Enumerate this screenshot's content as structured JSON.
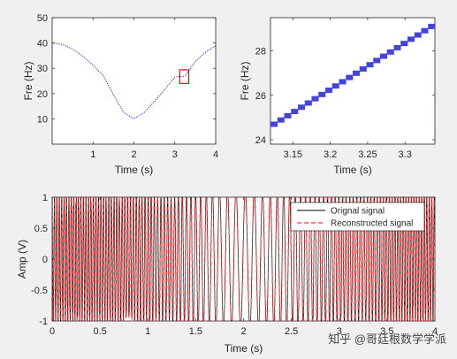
{
  "chart_data": [
    {
      "type": "line",
      "name": "frequency-curve",
      "xlabel": "Time (s)",
      "ylabel": "Fre (Hz)",
      "xlim": [
        0,
        4
      ],
      "ylim": [
        0,
        50
      ],
      "xticks": [
        1,
        2,
        3,
        4
      ],
      "yticks": [
        10,
        20,
        30,
        40,
        50
      ],
      "series": [
        {
          "color": "#0000cc",
          "style": "dotted",
          "x": [
            0,
            0.25,
            0.5,
            0.75,
            1.0,
            1.25,
            1.5,
            1.75,
            2.0,
            2.25,
            2.5,
            2.75,
            3.0,
            3.25,
            3.5,
            3.75,
            4.0
          ],
          "y": [
            40,
            39.4,
            37.6,
            34.8,
            31.2,
            27.1,
            19.5,
            12.5,
            10,
            12.5,
            16.8,
            21.5,
            26.5,
            26.9,
            32.7,
            36.3,
            38.9
          ]
        }
      ],
      "annotations": [
        {
          "type": "rectangle",
          "color": "#ff0000",
          "x": [
            3.12,
            3.34
          ],
          "y": [
            24,
            29.4
          ]
        }
      ]
    },
    {
      "type": "line",
      "name": "frequency-zoom",
      "xlabel": "Time (s)",
      "ylabel": "Fre (Hz)",
      "xlim": [
        3.12,
        3.34
      ],
      "ylim": [
        23.8,
        29.5
      ],
      "xticks": [
        3.15,
        3.2,
        3.25,
        3.3
      ],
      "xtick_labels": [
        "3.15",
        "3.2",
        "3.25",
        "3.3"
      ],
      "yticks": [
        24,
        26,
        28
      ],
      "series": [
        {
          "color": "#4444dd",
          "style": "thick-step",
          "x": [
            3.12,
            3.34
          ],
          "y": [
            24.6,
            29.2
          ]
        }
      ]
    },
    {
      "type": "line",
      "name": "signal",
      "xlabel": "Time (s)",
      "ylabel": "Amp (V)",
      "xlim": [
        0,
        4
      ],
      "ylim": [
        -1,
        1
      ],
      "xticks": [
        0,
        0.5,
        1,
        1.5,
        2,
        2.5,
        3,
        3.5,
        4
      ],
      "xtick_labels": [
        "0",
        "0.5",
        "1",
        "1.5",
        "2",
        "2.5",
        "3",
        "3.5",
        "4"
      ],
      "yticks": [
        -1,
        -0.5,
        0,
        0.5,
        1
      ],
      "ytick_labels": [
        "-1",
        "-0.5",
        "0",
        "0.5",
        "1"
      ],
      "legend": {
        "position": "top-right"
      },
      "series": [
        {
          "name": "Orignal signal",
          "color": "#000000",
          "style": "solid"
        },
        {
          "name": "Reconstructed signal",
          "color": "#ff0000",
          "style": "dashed"
        }
      ]
    }
  ],
  "watermark": "知乎 @哥廷根数学学派"
}
